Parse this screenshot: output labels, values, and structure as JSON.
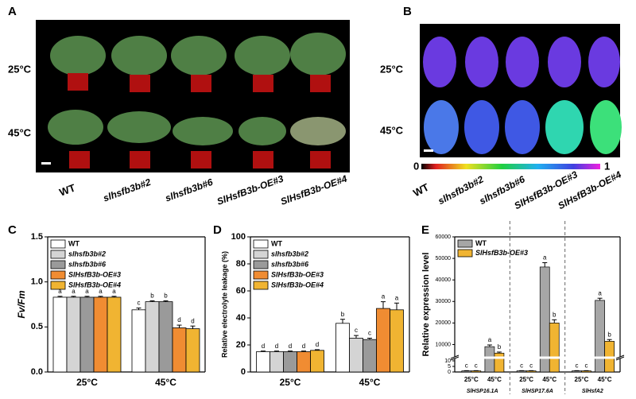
{
  "panels": {
    "A": {
      "label": "A",
      "rows": [
        "25°C",
        "45°C"
      ],
      "genotypes": [
        "WT",
        "slhsfb3b#2",
        "slhsfb3b#6",
        "SlHsfB3b-OE#3",
        "SlHsfB3b-OE#4"
      ]
    },
    "B": {
      "label": "B",
      "rows": [
        "25°C",
        "45°C"
      ],
      "genotypes": [
        "WT",
        "slhsfb3b#2",
        "slhsfb3b#6",
        "SlHsfB3b-OE#3",
        "SlHsfB3b-OE#4"
      ],
      "colorbar": {
        "min": 0,
        "max": 1
      }
    }
  },
  "chart_data": [
    {
      "type": "bar",
      "panel": "C",
      "ylabel": "Fv/Fm",
      "categories": [
        "25°C",
        "45°C"
      ],
      "ylim": [
        0,
        1.5
      ],
      "yticks": [
        {
          "value": 0,
          "label": "0.0"
        },
        0.5,
        {
          "value": 1,
          "label": "1.0"
        },
        1.5
      ],
      "series": [
        {
          "name": "WT",
          "color": "#ffffff",
          "values": [
            0.83,
            0.69
          ],
          "errors": [
            0.01,
            0.02
          ],
          "letters": [
            "a",
            "c"
          ]
        },
        {
          "name": "slhsfb3b#2",
          "color": "#d4d4d4",
          "values": [
            0.83,
            0.78
          ],
          "errors": [
            0.01,
            0.01
          ],
          "letters": [
            "a",
            "b"
          ]
        },
        {
          "name": "slhsfb3b#6",
          "color": "#9a9a9a",
          "values": [
            0.83,
            0.78
          ],
          "errors": [
            0.01,
            0.01
          ],
          "letters": [
            "a",
            "b"
          ]
        },
        {
          "name": "SlHsfB3b-OE#3",
          "color": "#f08c32",
          "values": [
            0.83,
            0.49
          ],
          "errors": [
            0.01,
            0.03
          ],
          "letters": [
            "a",
            "d"
          ]
        },
        {
          "name": "SlHsfB3b-OE#4",
          "color": "#f0b432",
          "values": [
            0.83,
            0.48
          ],
          "errors": [
            0.01,
            0.03
          ],
          "letters": [
            "a",
            "d"
          ]
        }
      ]
    },
    {
      "type": "bar",
      "panel": "D",
      "ylabel": "Relative electrolyte leakage (%)",
      "categories": [
        "25°C",
        "45°C"
      ],
      "ylim": [
        0,
        100
      ],
      "yticks": [
        0,
        20,
        40,
        60,
        80,
        100
      ],
      "series": [
        {
          "name": "WT",
          "color": "#ffffff",
          "values": [
            15,
            36
          ],
          "errors": [
            0.5,
            3
          ],
          "letters": [
            "d",
            "b"
          ]
        },
        {
          "name": "slhsfb3b#2",
          "color": "#d4d4d4",
          "values": [
            15,
            25
          ],
          "errors": [
            0.5,
            2
          ],
          "letters": [
            "d",
            "c"
          ]
        },
        {
          "name": "slhsfb3b#6",
          "color": "#9a9a9a",
          "values": [
            15,
            24
          ],
          "errors": [
            0.5,
            1
          ],
          "letters": [
            "d",
            "c"
          ]
        },
        {
          "name": "SlHsfB3b-OE#3",
          "color": "#f08c32",
          "values": [
            15,
            47
          ],
          "errors": [
            0.5,
            5
          ],
          "letters": [
            "d",
            "a"
          ]
        },
        {
          "name": "SlHsfB3b-OE#4",
          "color": "#f0b432",
          "values": [
            16,
            46
          ],
          "errors": [
            0.5,
            5
          ],
          "letters": [
            "d",
            "a"
          ]
        }
      ]
    },
    {
      "type": "broken_bar",
      "panel": "E",
      "ylabel": "Relative expression level",
      "groups": [
        "SlHSP16.1A",
        "SlHSP17.6A",
        "SlHsfA2"
      ],
      "categories": [
        "25°C",
        "45°C",
        "25°C",
        "45°C",
        "25°C",
        "45°C"
      ],
      "ylim": [
        [
          0,
          10
        ],
        [
          5000,
          60000
        ]
      ],
      "yticks": [
        0,
        5,
        10,
        10000,
        20000,
        30000,
        40000,
        50000,
        60000
      ],
      "series": [
        {
          "name": "WT",
          "color": "#a6a6a6",
          "values": [
            1,
            9000,
            1,
            46000,
            1,
            30500
          ],
          "errors": [
            0.2,
            800,
            0.2,
            2000,
            0.2,
            1000
          ],
          "letters": [
            "c",
            "a",
            "c",
            "a",
            "c",
            "a"
          ]
        },
        {
          "name": "SlHsfB3b-OE#3",
          "color": "#f0b432",
          "values": [
            1,
            6000,
            1,
            20000,
            1,
            11500
          ],
          "errors": [
            0.2,
            500,
            0.2,
            1500,
            0.2,
            800
          ],
          "letters": [
            "c",
            "b",
            "c",
            "b",
            "c",
            "b"
          ]
        }
      ]
    }
  ]
}
